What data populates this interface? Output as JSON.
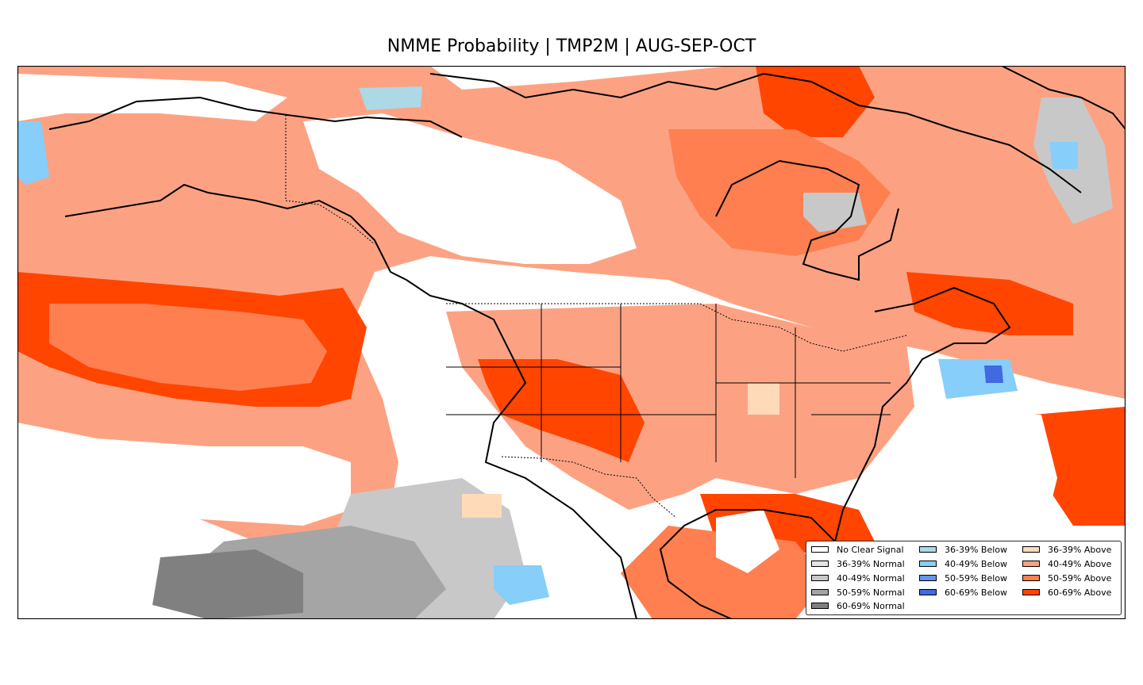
{
  "title": "NMME Probability | TMP2M | AUG-SEP-OCT",
  "legend": {
    "columns": [
      [
        {
          "label": "No Clear Signal",
          "color": "#ffffff"
        },
        {
          "label": "36-39% Normal",
          "color": "#e5e5e5"
        },
        {
          "label": "40-49% Normal",
          "color": "#c8c8c8"
        },
        {
          "label": "50-59% Normal",
          "color": "#a5a5a5"
        },
        {
          "label": "60-69% Normal",
          "color": "#808080"
        }
      ],
      [
        {
          "label": "36-39% Below",
          "color": "#add8e6"
        },
        {
          "label": "40-49% Below",
          "color": "#87cefa"
        },
        {
          "label": "50-59% Below",
          "color": "#6495ed"
        },
        {
          "label": "60-69% Below",
          "color": "#4169e1"
        }
      ],
      [
        {
          "label": "36-39% Above",
          "color": "#ffdab9"
        },
        {
          "label": "40-49% Above",
          "color": "#fca283"
        },
        {
          "label": "50-59% Above",
          "color": "#ff7f50"
        },
        {
          "label": "60-69% Above",
          "color": "#ff4500"
        }
      ]
    ]
  }
}
